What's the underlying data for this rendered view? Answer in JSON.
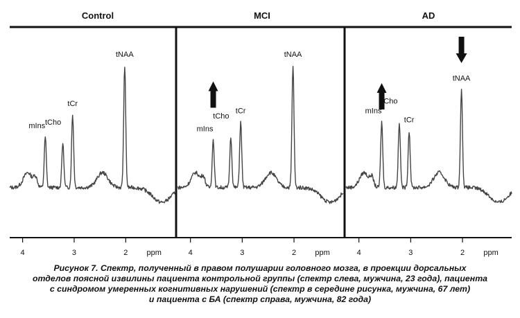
{
  "chart_data": [
    {
      "type": "line",
      "title": "Control",
      "xlabel": "ppm",
      "xlim": [
        4.25,
        1.05
      ],
      "xticks": [
        "4",
        "3",
        "2"
      ],
      "peaks": [
        {
          "name": "mIns",
          "ppm": 3.56,
          "height": 0.52
        },
        {
          "name": "tCho",
          "ppm": 3.22,
          "height": 0.48
        },
        {
          "name": "tCr",
          "ppm": 3.03,
          "height": 0.67
        },
        {
          "name": "tNAA",
          "ppm": 2.02,
          "height": 1.0
        }
      ],
      "arrow": "none"
    },
    {
      "type": "line",
      "title": "MCI",
      "xlabel": "ppm",
      "xlim": [
        4.25,
        1.05
      ],
      "xticks": [
        "4",
        "3",
        "2"
      ],
      "peaks": [
        {
          "name": "mIns",
          "ppm": 3.56,
          "height": 0.5
        },
        {
          "name": "tCho",
          "ppm": 3.22,
          "height": 0.52
        },
        {
          "name": "tCr",
          "ppm": 3.03,
          "height": 0.62
        },
        {
          "name": "tNAA",
          "ppm": 2.02,
          "height": 1.0
        }
      ],
      "arrow": "up-mIns"
    },
    {
      "type": "line",
      "title": "AD",
      "xlabel": "ppm",
      "xlim": [
        4.25,
        1.05
      ],
      "xticks": [
        "4",
        "3",
        "2"
      ],
      "peaks": [
        {
          "name": "mIns",
          "ppm": 3.56,
          "height": 0.62
        },
        {
          "name": "tCho",
          "ppm": 3.22,
          "height": 0.62
        },
        {
          "name": "tCr",
          "ppm": 3.03,
          "height": 0.56
        },
        {
          "name": "tNAA",
          "ppm": 2.02,
          "height": 0.84
        }
      ],
      "arrow": "down-tNAA"
    }
  ],
  "caption": {
    "lines": [
      "Рисунок 7. Спектр, полученный в правом полушарии головного мозга, в проекции дорсальных",
      "отделов поясной извилины пациента контрольной группы (спектр слева, мужчина, 23 года), пациента",
      "с синдромом умеренных когнитивных нарушений (спектр в середине рисунка, мужчина, 67 лет)",
      "и пациента с БА (спектр справа, мужчина, 82 года)"
    ]
  },
  "colors": {
    "line": "#444444",
    "frame": "#111111",
    "text": "#111111"
  }
}
